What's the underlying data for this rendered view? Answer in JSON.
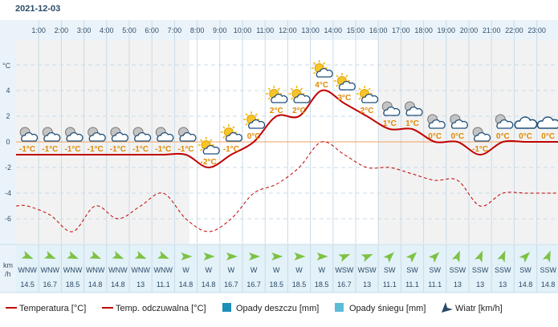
{
  "date": "2021-12-03",
  "units": {
    "y_axis": "°C",
    "wind_axis": [
      "km",
      "/h"
    ]
  },
  "hours": [
    "1:00",
    "2:00",
    "3:00",
    "4:00",
    "5:00",
    "6:00",
    "7:00",
    "8:00",
    "9:00",
    "10:00",
    "11:00",
    "12:00",
    "13:00",
    "14:00",
    "15:00",
    "16:00",
    "17:00",
    "18:00",
    "19:00",
    "20:00",
    "21:00",
    "22:00",
    "23:00"
  ],
  "icon_labels": [
    "-1°C",
    "-1°C",
    "-1°C",
    "-1°C",
    "-1°C",
    "-1°C",
    "-1°C",
    "-1°C",
    "-2°C",
    "-1°C",
    "0°C",
    "2°C",
    "2°C",
    "4°C",
    "3°C",
    "2°C",
    "1°C",
    "1°C",
    "0°C",
    "0°C",
    "-1°C",
    "0°C",
    "0°C",
    "0°C"
  ],
  "icons": [
    "moon-cloud-icon",
    "moon-cloud-icon",
    "moon-cloud-icon",
    "moon-cloud-icon",
    "moon-cloud-icon",
    "moon-cloud-icon",
    "moon-cloud-icon",
    "moon-cloud-icon",
    "sun-cloud-icon",
    "sun-cloud-icon",
    "sun-cloud-icon",
    "sun-cloud-icon",
    "sun-cloud-icon",
    "sun-cloud-icon",
    "sun-cloud-icon",
    "sun-cloud-icon",
    "moon-cloud-icon",
    "moon-cloud-icon",
    "moon-cloud-icon",
    "moon-cloud-icon",
    "moon-cloud-icon",
    "moon-cloud-icon",
    "cloud-icon",
    "cloud-icon"
  ],
  "wind": {
    "directions": [
      "WNW",
      "WNW",
      "WNW",
      "WNW",
      "WNW",
      "WNW",
      "WNW",
      "W",
      "W",
      "W",
      "W",
      "W",
      "W",
      "W",
      "WSW",
      "WSW",
      "SW",
      "SW",
      "SW",
      "SSW",
      "SSW",
      "SSW",
      "SW",
      "SSW"
    ],
    "speeds": [
      "14.5",
      "16.7",
      "18.5",
      "14.8",
      "14.8",
      "13",
      "11.1",
      "14.8",
      "14.8",
      "16.7",
      "16.7",
      "18.5",
      "18.5",
      "18.5",
      "16.7",
      "13",
      "11.1",
      "11.1",
      "11.1",
      "13",
      "13",
      "13",
      "14.8",
      "14.8"
    ],
    "arrow_angles": [
      112.5,
      112.5,
      112.5,
      112.5,
      112.5,
      112.5,
      112.5,
      90,
      90,
      90,
      90,
      90,
      90,
      90,
      67.5,
      67.5,
      45,
      45,
      45,
      22.5,
      22.5,
      22.5,
      45,
      22.5
    ]
  },
  "legend": {
    "temperature": "Temperatura [°C]",
    "feels_like": "Temp. odczuwalna [°C]",
    "rain": "Opady deszczu [mm]",
    "snow": "Opady śniegu [mm]",
    "wind": "Wiatr [km/h]"
  },
  "colors": {
    "temperature": "#c00000",
    "feels_like": "#c00000",
    "rain": "#1a8fb8",
    "snow": "#5bbcd6",
    "zero_line": "#f0a060",
    "label": "#e08a00",
    "axis_text": "#34506a"
  },
  "chart_data": {
    "type": "line",
    "title": "2021-12-03",
    "ylabel": "°C",
    "ylim": [
      -8,
      7.5
    ],
    "yticks": [
      4,
      2,
      0,
      -2,
      -4,
      -6
    ],
    "x": [
      0,
      1,
      2,
      3,
      4,
      5,
      6,
      7,
      8,
      9,
      10,
      11,
      12,
      13,
      14,
      15,
      16,
      17,
      18,
      19,
      20,
      21,
      22,
      23
    ],
    "series": [
      {
        "name": "Temperatura [°C]",
        "values": [
          -1,
          -1,
          -1,
          -1,
          -1,
          -1,
          -1,
          -1,
          -2,
          -1,
          0,
          2,
          2,
          4,
          3,
          2,
          1,
          1,
          0,
          0,
          -1,
          0,
          0,
          0
        ]
      },
      {
        "name": "Temp. odczuwalna [°C]",
        "values": [
          -5,
          -5.7,
          -7,
          -5,
          -6,
          -5,
          -4,
          -6,
          -7,
          -6,
          -4,
          -3.3,
          -2,
          0,
          -1,
          -2,
          -2,
          -2.5,
          -3,
          -3,
          -5,
          -4,
          -4,
          -4
        ]
      }
    ],
    "precipitation": {
      "rain_mm": [
        0,
        0,
        0,
        0,
        0,
        0,
        0,
        0,
        0,
        0,
        0,
        0,
        0,
        0,
        0,
        0,
        0,
        0,
        0,
        0,
        0,
        0,
        0,
        0
      ],
      "snow_mm": [
        0,
        0,
        0,
        0,
        0,
        0,
        0,
        0,
        0,
        0,
        0,
        0,
        0,
        0,
        0,
        0,
        0,
        0,
        0,
        0,
        0,
        0,
        0,
        0
      ]
    },
    "grid": true
  }
}
